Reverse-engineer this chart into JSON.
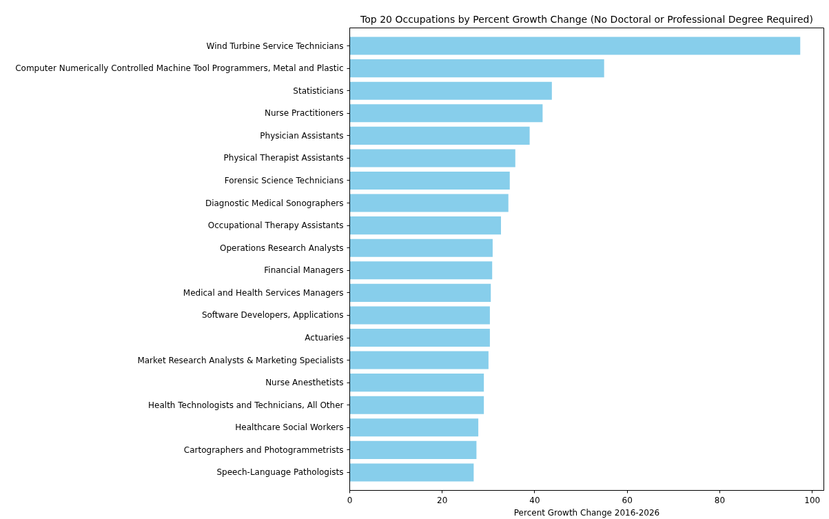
{
  "chart_data": {
    "type": "bar",
    "orientation": "horizontal",
    "title": "Top 20 Occupations by Percent Growth Change (No Doctoral or Professional Degree Required)",
    "xlabel": "Percent Growth Change 2016-2026",
    "categories": [
      "Wind Turbine Service Technicians",
      "Computer Numerically Controlled Machine Tool Programmers, Metal and Plastic",
      "Statisticians",
      "Nurse Practitioners",
      "Physician Assistants",
      "Physical Therapist Assistants",
      "Forensic Science Technicians",
      "Diagnostic Medical Sonographers",
      "Occupational Therapy Assistants",
      "Operations Research Analysts",
      "Financial Managers",
      "Medical and Health Services Managers",
      "Software Developers, Applications",
      "Actuaries",
      "Market Research Analysts & Marketing Specialists",
      "Nurse Anesthetists",
      "Health Technologists and Technicians, All Other",
      "Healthcare Social Workers",
      "Cartographers and Photogrammetrists",
      "Speech-Language Pathologists"
    ],
    "values": [
      97.4,
      55.0,
      43.7,
      41.7,
      38.9,
      35.8,
      34.6,
      34.3,
      32.7,
      30.9,
      30.8,
      30.5,
      30.3,
      30.3,
      30.0,
      29.0,
      29.0,
      27.8,
      27.4,
      26.8
    ],
    "color": "#87ceeb",
    "xlim": [
      0,
      102.5
    ],
    "xticks": [
      0,
      20,
      40,
      60,
      80,
      100
    ],
    "grid": false
  }
}
